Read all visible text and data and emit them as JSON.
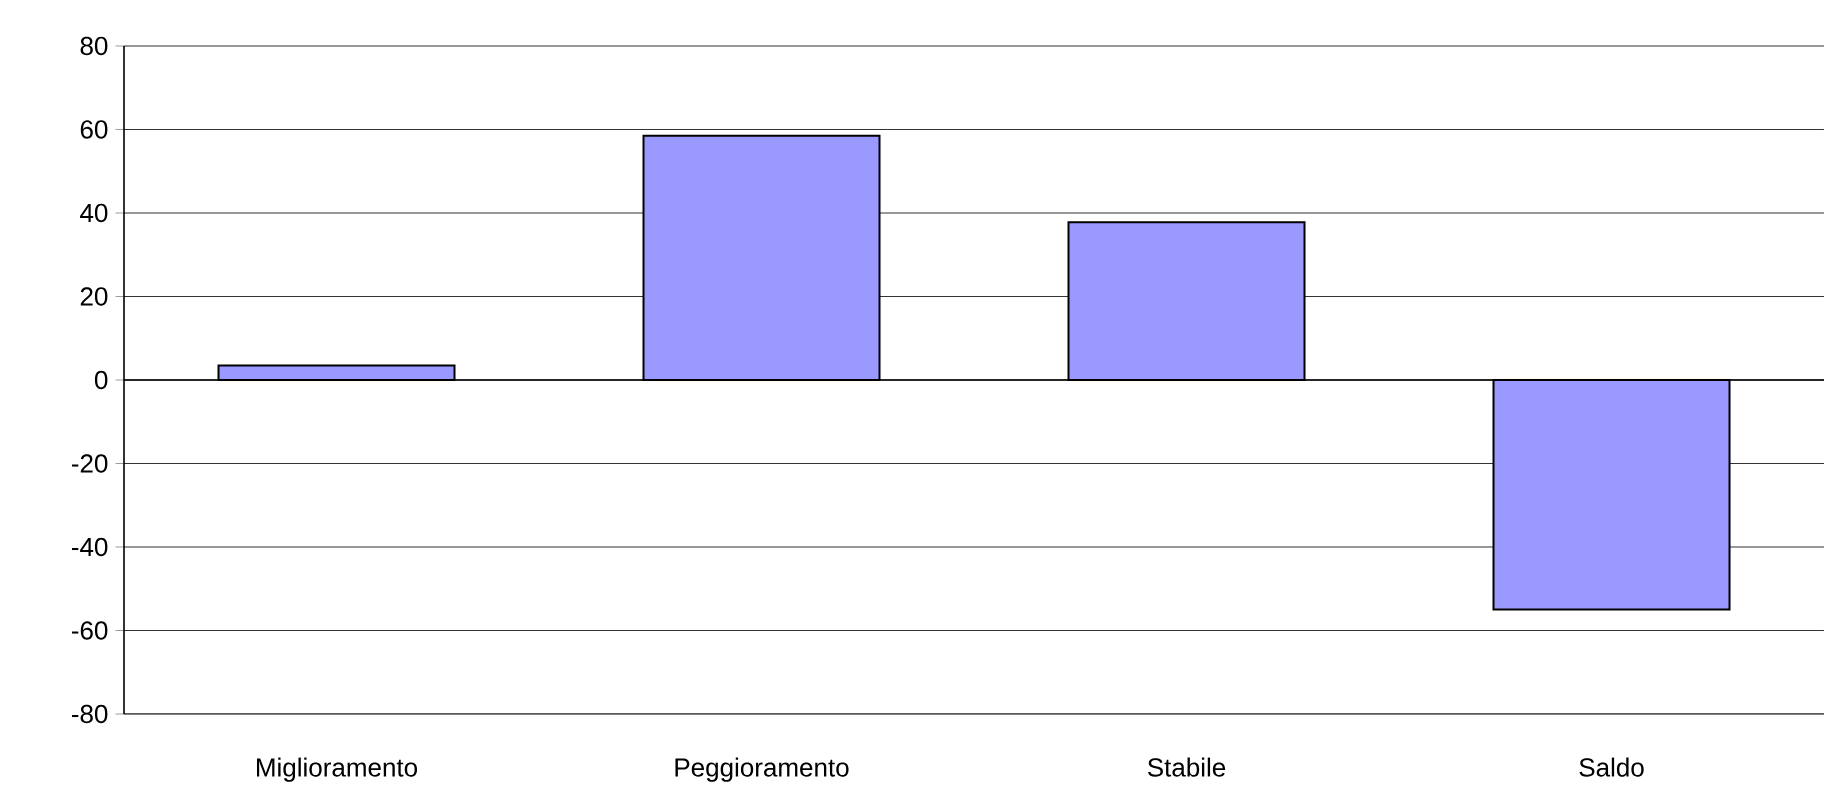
{
  "chart_data": {
    "type": "bar",
    "categories": [
      "Miglioramento",
      "Peggioramento",
      "Stabile",
      "Saldo"
    ],
    "values": [
      3.5,
      58.5,
      37.8,
      -55
    ],
    "color": "#9999ff",
    "ylim": [
      -80,
      80
    ],
    "yticks": [
      -80,
      -60,
      -40,
      -20,
      0,
      20,
      40,
      60,
      80
    ],
    "grid": "y"
  }
}
